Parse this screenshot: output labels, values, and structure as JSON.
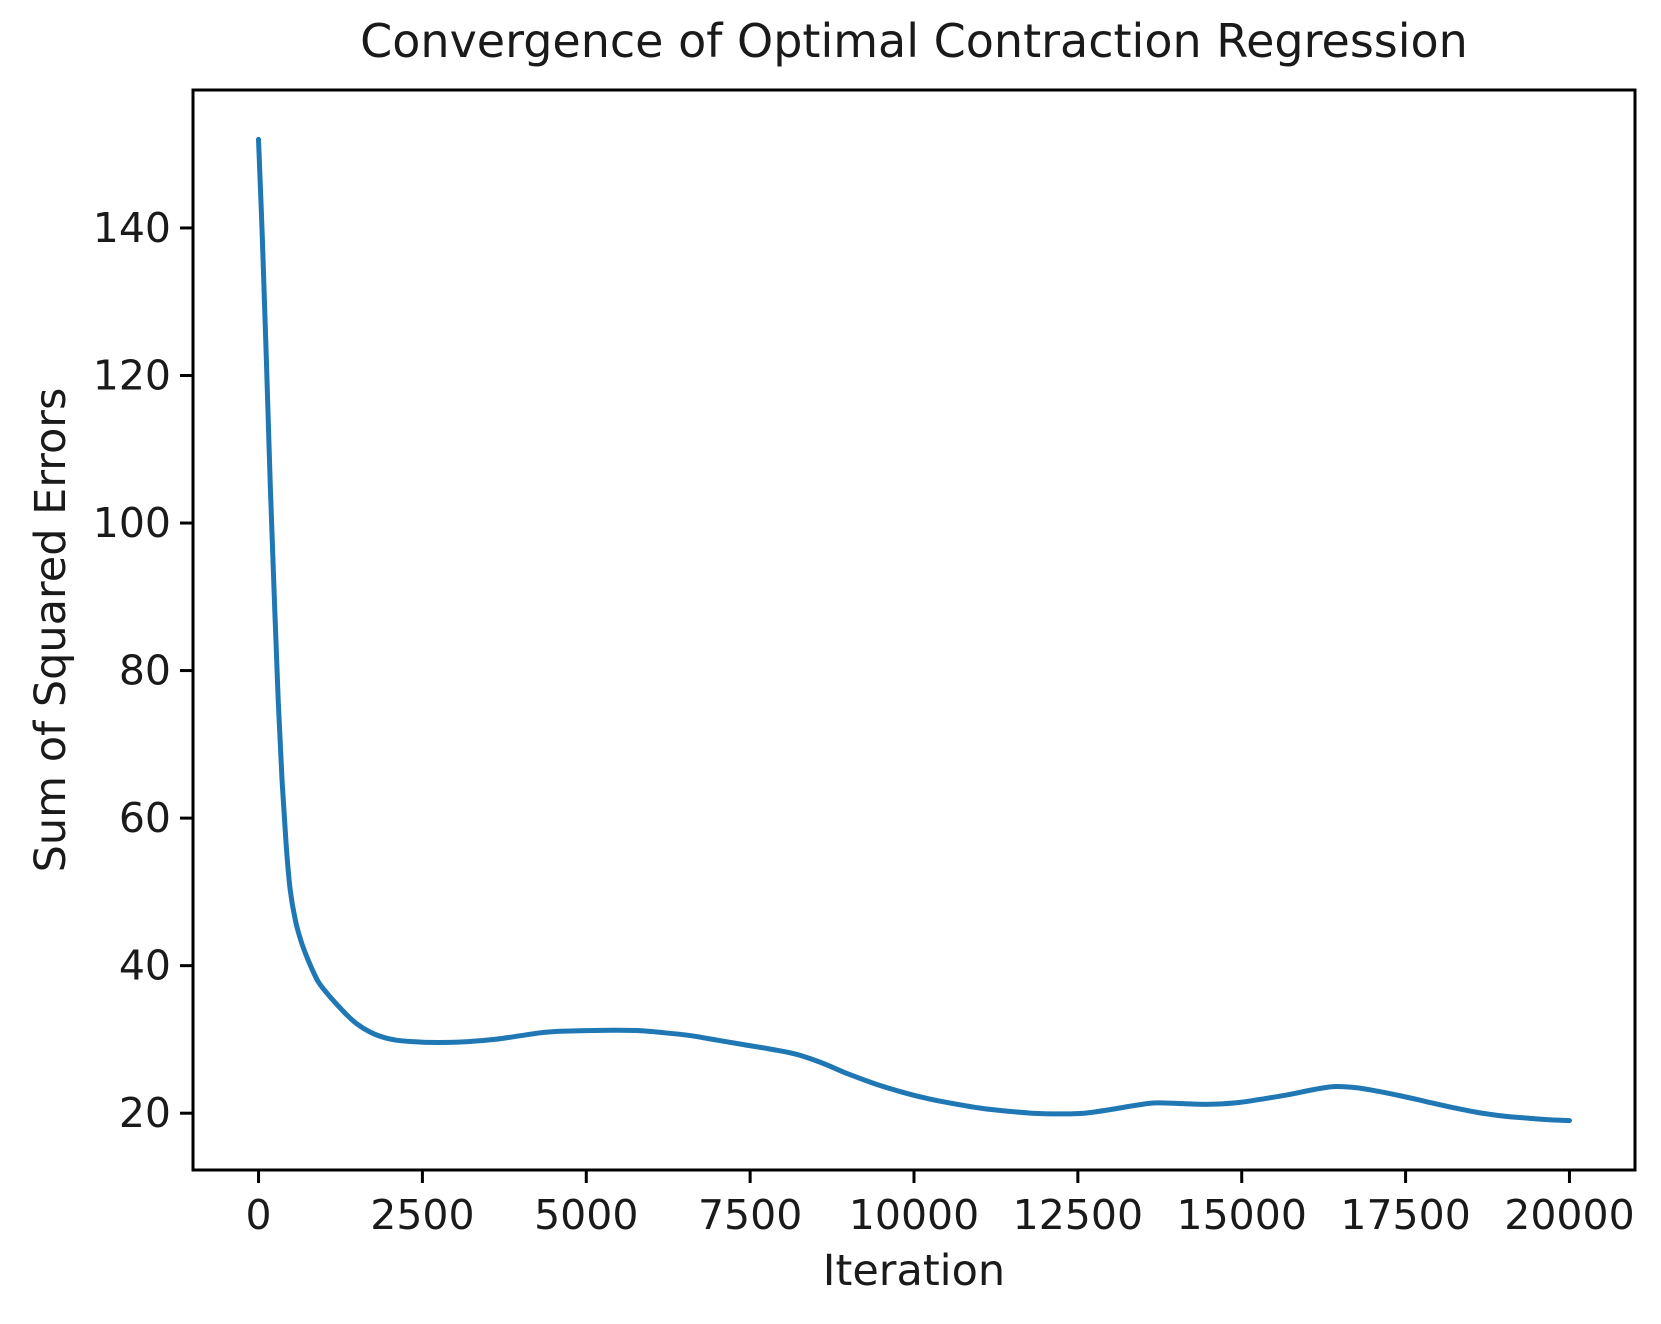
{
  "chart_data": {
    "type": "line",
    "title": "Convergence of Optimal Contraction Regression",
    "xlabel": "Iteration",
    "ylabel": "Sum of Squared Errors",
    "line_color": "#1f77b4",
    "axis_color": "#000000",
    "text_color": "#1a1a1a",
    "grid": false,
    "legend_position": "none",
    "xlim": [
      -1000,
      21000
    ],
    "ylim": [
      12.3,
      158.7
    ],
    "xticks": {
      "values": [
        0,
        2500,
        5000,
        7500,
        10000,
        12500,
        15000,
        17500,
        20000
      ],
      "labels": [
        "0",
        "2500",
        "5000",
        "7500",
        "10000",
        "12500",
        "15000",
        "17500",
        "20000"
      ]
    },
    "yticks": {
      "values": [
        20,
        40,
        60,
        80,
        100,
        120,
        140
      ],
      "labels": [
        "20",
        "40",
        "60",
        "80",
        "100",
        "120",
        "140"
      ]
    },
    "series": [
      {
        "name": "Sum of Squared Errors",
        "x": [
          0,
          60,
          120,
          180,
          240,
          300,
          360,
          420,
          480,
          560,
          650,
          750,
          900,
          1050,
          1200,
          1350,
          1500,
          1700,
          1900,
          2100,
          2350,
          2600,
          2900,
          3200,
          3600,
          4000,
          4300,
          4600,
          5000,
          5400,
          5800,
          6200,
          6600,
          7000,
          7400,
          7800,
          8200,
          8600,
          9000,
          9400,
          9800,
          10200,
          10600,
          11000,
          11400,
          11800,
          12200,
          12600,
          13000,
          13400,
          13700,
          14100,
          14500,
          14900,
          15300,
          15700,
          16100,
          16400,
          16700,
          17000,
          17400,
          17800,
          18200,
          18600,
          19000,
          19400,
          19700,
          20000
        ],
        "y": [
          152,
          138,
          122,
          105,
          90,
          76,
          65,
          56.5,
          50.5,
          46.2,
          43.3,
          40.9,
          38.0,
          36.2,
          34.7,
          33.3,
          32.1,
          31.0,
          30.3,
          29.9,
          29.7,
          29.6,
          29.6,
          29.7,
          30.0,
          30.5,
          30.9,
          31.1,
          31.2,
          31.25,
          31.2,
          30.9,
          30.5,
          29.9,
          29.3,
          28.7,
          28.0,
          26.8,
          25.3,
          24.0,
          22.9,
          22.0,
          21.3,
          20.7,
          20.3,
          20.0,
          19.9,
          20.0,
          20.5,
          21.1,
          21.4,
          21.3,
          21.2,
          21.4,
          21.9,
          22.5,
          23.2,
          23.6,
          23.5,
          23.1,
          22.4,
          21.6,
          20.8,
          20.1,
          19.6,
          19.3,
          19.1,
          19.0
        ]
      }
    ]
  }
}
